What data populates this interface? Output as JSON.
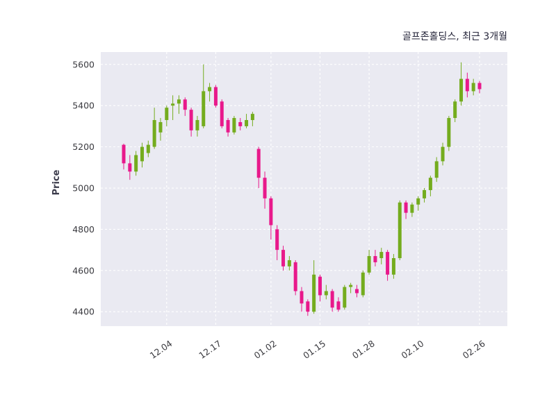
{
  "header": {
    "title": "골프존홀딩스, 최근 3개월"
  },
  "chart_data": {
    "type": "candlestick",
    "title": "골프존홀딩스, 최근 3개월",
    "xlabel": "",
    "ylabel": "Price",
    "ylim": [
      4330,
      5660
    ],
    "yticks": [
      4400,
      4600,
      4800,
      5000,
      5200,
      5400,
      5600
    ],
    "xticks": [
      {
        "index": 7,
        "label": "12.04"
      },
      {
        "index": 15,
        "label": "12.17"
      },
      {
        "index": 24,
        "label": "01.02"
      },
      {
        "index": 32,
        "label": "01.15"
      },
      {
        "index": 40,
        "label": "01.28"
      },
      {
        "index": 48,
        "label": "02.10"
      },
      {
        "index": 58,
        "label": "02.26"
      }
    ],
    "legend": "none",
    "grid": "white-dashed",
    "plot_bg": "#eaeaf2",
    "grid_color": "#ffffff",
    "up_color": "#74ac1e",
    "down_color": "#e8198b",
    "candles_format": [
      "open",
      "high",
      "low",
      "close"
    ],
    "candles": [
      [
        5210,
        5215,
        5090,
        5120
      ],
      [
        5120,
        5160,
        5040,
        5080
      ],
      [
        5080,
        5180,
        5060,
        5160
      ],
      [
        5130,
        5220,
        5100,
        5200
      ],
      [
        5170,
        5230,
        5150,
        5210
      ],
      [
        5200,
        5390,
        5190,
        5330
      ],
      [
        5270,
        5340,
        5230,
        5320
      ],
      [
        5330,
        5400,
        5300,
        5390
      ],
      [
        5400,
        5450,
        5330,
        5410
      ],
      [
        5410,
        5450,
        5360,
        5430
      ],
      [
        5430,
        5440,
        5350,
        5380
      ],
      [
        5380,
        5390,
        5250,
        5280
      ],
      [
        5280,
        5350,
        5250,
        5330
      ],
      [
        5300,
        5600,
        5290,
        5470
      ],
      [
        5470,
        5510,
        5420,
        5490
      ],
      [
        5490,
        5500,
        5390,
        5400
      ],
      [
        5420,
        5430,
        5290,
        5300
      ],
      [
        5330,
        5340,
        5250,
        5270
      ],
      [
        5270,
        5350,
        5260,
        5340
      ],
      [
        5320,
        5340,
        5280,
        5300
      ],
      [
        5300,
        5360,
        5290,
        5330
      ],
      [
        5330,
        5370,
        5300,
        5360
      ],
      [
        5190,
        5200,
        5000,
        5050
      ],
      [
        5050,
        5080,
        4900,
        4950
      ],
      [
        4950,
        4960,
        4750,
        4820
      ],
      [
        4800,
        4820,
        4650,
        4700
      ],
      [
        4700,
        4720,
        4600,
        4620
      ],
      [
        4620,
        4670,
        4600,
        4650
      ],
      [
        4640,
        4650,
        4480,
        4500
      ],
      [
        4500,
        4520,
        4400,
        4440
      ],
      [
        4450,
        4460,
        4380,
        4400
      ],
      [
        4400,
        4650,
        4390,
        4580
      ],
      [
        4570,
        4580,
        4450,
        4480
      ],
      [
        4480,
        4530,
        4460,
        4500
      ],
      [
        4500,
        4510,
        4400,
        4420
      ],
      [
        4450,
        4470,
        4400,
        4410
      ],
      [
        4420,
        4530,
        4410,
        4520
      ],
      [
        4520,
        4540,
        4490,
        4530
      ],
      [
        4510,
        4530,
        4470,
        4490
      ],
      [
        4480,
        4600,
        4470,
        4590
      ],
      [
        4590,
        4700,
        4580,
        4670
      ],
      [
        4670,
        4700,
        4620,
        4640
      ],
      [
        4660,
        4710,
        4630,
        4690
      ],
      [
        4690,
        4700,
        4550,
        4580
      ],
      [
        4580,
        4680,
        4560,
        4660
      ],
      [
        4660,
        4940,
        4650,
        4930
      ],
      [
        4930,
        4940,
        4850,
        4880
      ],
      [
        4880,
        4930,
        4860,
        4920
      ],
      [
        4920,
        4960,
        4890,
        4950
      ],
      [
        4950,
        5000,
        4930,
        4990
      ],
      [
        4990,
        5060,
        4960,
        5050
      ],
      [
        5050,
        5150,
        5030,
        5130
      ],
      [
        5130,
        5220,
        5110,
        5200
      ],
      [
        5200,
        5350,
        5180,
        5340
      ],
      [
        5340,
        5430,
        5320,
        5420
      ],
      [
        5420,
        5610,
        5400,
        5530
      ],
      [
        5530,
        5560,
        5440,
        5470
      ],
      [
        5470,
        5530,
        5450,
        5510
      ],
      [
        5510,
        5520,
        5460,
        5480
      ]
    ]
  }
}
